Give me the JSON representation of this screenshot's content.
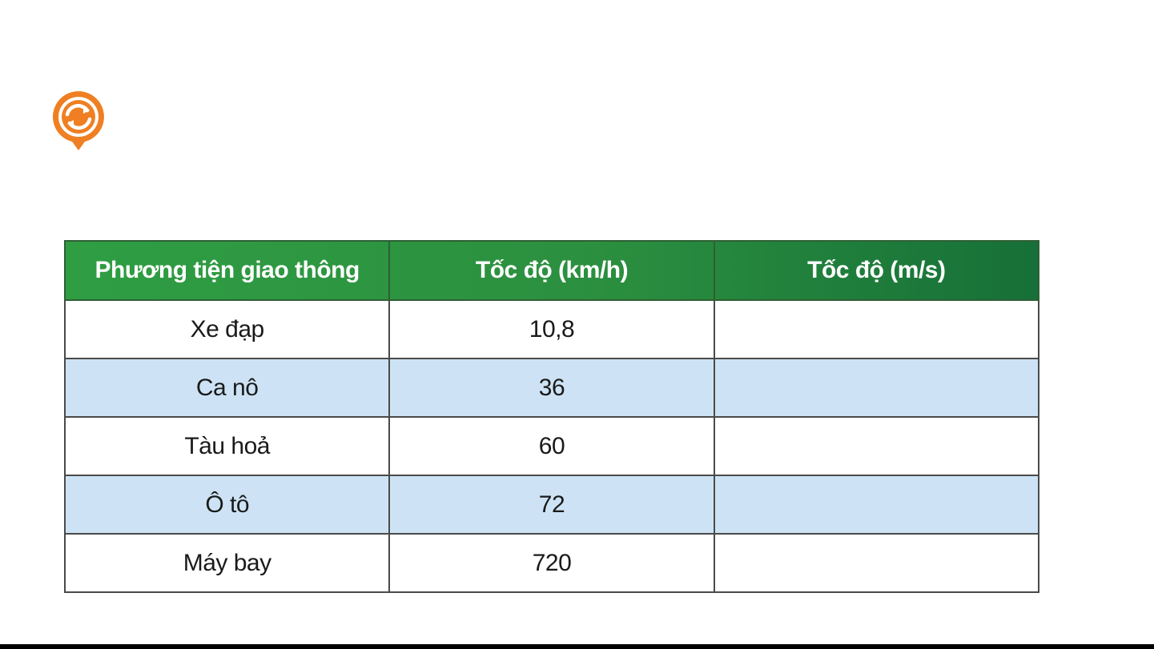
{
  "colors": {
    "header_green": "#2b8f3f",
    "header_green_dark": "#167038",
    "row_alt_blue": "#cde3f5",
    "icon_orange": "#ef7f22"
  },
  "icon": {
    "name": "refresh-arrows-icon"
  },
  "table": {
    "headers": [
      "Phương tiện giao thông",
      "Tốc độ (km/h)",
      "Tốc độ (m/s)"
    ],
    "rows": [
      [
        "Xe đạp",
        "10,8",
        ""
      ],
      [
        "Ca nô",
        "36",
        ""
      ],
      [
        "Tàu hoả",
        "60",
        ""
      ],
      [
        "Ô tô",
        "72",
        ""
      ],
      [
        "Máy bay",
        "720",
        ""
      ]
    ]
  }
}
